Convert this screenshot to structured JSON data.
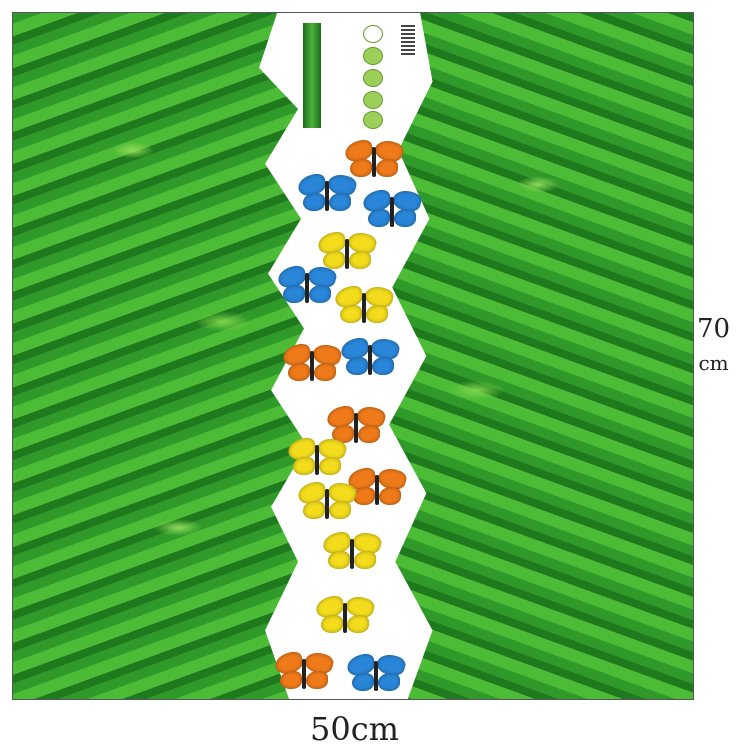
{
  "dimensions": {
    "height_value": "70",
    "height_unit": "cm",
    "width": "50cm"
  },
  "colors": {
    "grass": "#3aa52f",
    "butterfly_orange": "#ef7a1a",
    "butterfly_blue": "#2a86d8",
    "butterfly_yellow": "#f2dc1c"
  },
  "butterflies": [
    "orange",
    "blue",
    "blue",
    "yellow",
    "blue",
    "yellow",
    "orange",
    "blue",
    "orange",
    "yellow",
    "orange",
    "yellow",
    "yellow",
    "yellow",
    "orange",
    "blue"
  ]
}
